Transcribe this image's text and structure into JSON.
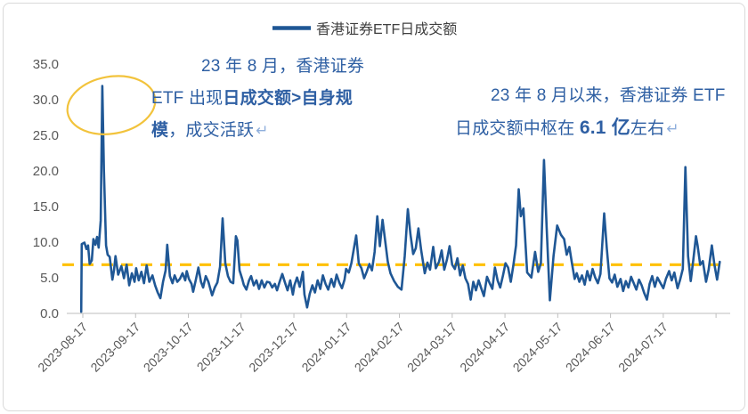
{
  "chart_data": {
    "type": "line",
    "title": "",
    "legend_position": "top-center",
    "grid": false,
    "x_axis": {
      "tick_labels": [
        "2023-08-17",
        "2023-09-17",
        "2023-10-17",
        "2023-11-17",
        "2023-12-17",
        "2024-01-17",
        "2024-02-17",
        "2024-03-17",
        "2024-04-17",
        "2024-05-17",
        "2024-06-17",
        "2024-07-17"
      ],
      "note": "daily data; series point x = months after 2023-08-17 (estimated from axis)"
    },
    "y_axis": {
      "tick_labels": [
        "0.0",
        "5.0",
        "10.0",
        "15.0",
        "20.0",
        "25.0",
        "30.0",
        "35.0"
      ],
      "min": 0,
      "max": 35,
      "tick_step": 5
    },
    "reference_line": {
      "value": 6.8,
      "style": "dashed",
      "color": "#FFC000"
    },
    "series": [
      {
        "name": "香港证券ETF日成交额",
        "color": "#1F5795",
        "unit": "亿元",
        "points": [
          [
            -0.03,
            0.2
          ],
          [
            -0.02,
            9.7
          ],
          [
            0.03,
            9.9
          ],
          [
            0.07,
            9.0
          ],
          [
            0.1,
            9.5
          ],
          [
            0.13,
            6.9
          ],
          [
            0.17,
            7.4
          ],
          [
            0.2,
            10.4
          ],
          [
            0.24,
            9.6
          ],
          [
            0.27,
            10.7
          ],
          [
            0.3,
            9.2
          ],
          [
            0.34,
            13.0
          ],
          [
            0.37,
            31.9
          ],
          [
            0.4,
            20.0
          ],
          [
            0.44,
            9.5
          ],
          [
            0.47,
            8.2
          ],
          [
            0.51,
            7.9
          ],
          [
            0.56,
            4.7
          ],
          [
            0.59,
            6.0
          ],
          [
            0.62,
            8.0
          ],
          [
            0.67,
            5.4
          ],
          [
            0.73,
            6.6
          ],
          [
            0.78,
            4.9
          ],
          [
            0.83,
            6.8
          ],
          [
            0.88,
            3.9
          ],
          [
            0.93,
            5.6
          ],
          [
            0.98,
            4.4
          ],
          [
            1.01,
            6.3
          ],
          [
            1.06,
            4.6
          ],
          [
            1.11,
            5.8
          ],
          [
            1.16,
            4.2
          ],
          [
            1.21,
            6.7
          ],
          [
            1.26,
            4.4
          ],
          [
            1.32,
            5.3
          ],
          [
            1.37,
            3.9
          ],
          [
            1.42,
            2.9
          ],
          [
            1.47,
            2.1
          ],
          [
            1.52,
            4.4
          ],
          [
            1.57,
            6.0
          ],
          [
            1.6,
            9.6
          ],
          [
            1.65,
            5.2
          ],
          [
            1.7,
            4.2
          ],
          [
            1.74,
            5.3
          ],
          [
            1.79,
            4.4
          ],
          [
            1.84,
            4.8
          ],
          [
            1.89,
            5.6
          ],
          [
            1.94,
            4.6
          ],
          [
            1.97,
            5.9
          ],
          [
            2.01,
            4.8
          ],
          [
            2.06,
            4.1
          ],
          [
            2.09,
            3.0
          ],
          [
            2.14,
            4.6
          ],
          [
            2.19,
            6.4
          ],
          [
            2.24,
            4.4
          ],
          [
            2.28,
            3.6
          ],
          [
            2.33,
            5.2
          ],
          [
            2.38,
            4.4
          ],
          [
            2.45,
            2.5
          ],
          [
            2.5,
            3.6
          ],
          [
            2.55,
            4.3
          ],
          [
            2.6,
            6.5
          ],
          [
            2.65,
            13.3
          ],
          [
            2.7,
            7.0
          ],
          [
            2.75,
            5.2
          ],
          [
            2.8,
            4.4
          ],
          [
            2.85,
            4.2
          ],
          [
            2.9,
            10.8
          ],
          [
            2.93,
            10.2
          ],
          [
            2.97,
            6.0
          ],
          [
            3.02,
            4.8
          ],
          [
            3.05,
            4.0
          ],
          [
            3.1,
            3.3
          ],
          [
            3.15,
            4.6
          ],
          [
            3.19,
            5.2
          ],
          [
            3.24,
            3.9
          ],
          [
            3.29,
            4.6
          ],
          [
            3.34,
            3.4
          ],
          [
            3.39,
            4.6
          ],
          [
            3.44,
            3.6
          ],
          [
            3.49,
            4.4
          ],
          [
            3.54,
            4.3
          ],
          [
            3.59,
            3.6
          ],
          [
            3.64,
            4.1
          ],
          [
            3.68,
            3.2
          ],
          [
            3.73,
            4.4
          ],
          [
            3.78,
            5.5
          ],
          [
            3.83,
            4.3
          ],
          [
            3.88,
            3.2
          ],
          [
            3.93,
            4.6
          ],
          [
            3.98,
            2.6
          ],
          [
            4.01,
            3.9
          ],
          [
            4.06,
            5.0
          ],
          [
            4.11,
            3.7
          ],
          [
            4.17,
            5.8
          ],
          [
            4.2,
            2.6
          ],
          [
            4.25,
            0.8
          ],
          [
            4.3,
            2.7
          ],
          [
            4.35,
            3.9
          ],
          [
            4.4,
            2.9
          ],
          [
            4.45,
            4.6
          ],
          [
            4.5,
            3.4
          ],
          [
            4.55,
            5.3
          ],
          [
            4.6,
            4.1
          ],
          [
            4.65,
            3.3
          ],
          [
            4.71,
            4.8
          ],
          [
            4.76,
            3.7
          ],
          [
            4.81,
            5.4
          ],
          [
            4.86,
            4.3
          ],
          [
            4.91,
            3.5
          ],
          [
            4.96,
            4.7
          ],
          [
            4.99,
            6.2
          ],
          [
            5.04,
            5.7
          ],
          [
            5.09,
            7.0
          ],
          [
            5.14,
            9.2
          ],
          [
            5.18,
            10.9
          ],
          [
            5.23,
            7.0
          ],
          [
            5.28,
            6.3
          ],
          [
            5.33,
            4.9
          ],
          [
            5.38,
            5.8
          ],
          [
            5.43,
            6.9
          ],
          [
            5.48,
            6.0
          ],
          [
            5.53,
            8.6
          ],
          [
            5.58,
            13.6
          ],
          [
            5.63,
            9.4
          ],
          [
            5.68,
            13.1
          ],
          [
            5.73,
            10.1
          ],
          [
            5.78,
            7.2
          ],
          [
            5.83,
            5.6
          ],
          [
            5.9,
            4.5
          ],
          [
            5.97,
            3.7
          ],
          [
            6.04,
            3.3
          ],
          [
            6.1,
            8.0
          ],
          [
            6.16,
            14.6
          ],
          [
            6.21,
            11.0
          ],
          [
            6.26,
            8.3
          ],
          [
            6.31,
            9.1
          ],
          [
            6.36,
            11.9
          ],
          [
            6.41,
            8.9
          ],
          [
            6.48,
            5.6
          ],
          [
            6.53,
            7.1
          ],
          [
            6.58,
            6.1
          ],
          [
            6.64,
            9.3
          ],
          [
            6.69,
            6.3
          ],
          [
            6.75,
            7.2
          ],
          [
            6.8,
            8.8
          ],
          [
            6.85,
            6.1
          ],
          [
            6.9,
            7.5
          ],
          [
            6.95,
            9.4
          ],
          [
            7.0,
            6.8
          ],
          [
            7.05,
            6.2
          ],
          [
            7.1,
            7.7
          ],
          [
            7.15,
            5.3
          ],
          [
            7.2,
            6.7
          ],
          [
            7.25,
            4.9
          ],
          [
            7.3,
            4.1
          ],
          [
            7.35,
            1.9
          ],
          [
            7.4,
            4.4
          ],
          [
            7.45,
            3.2
          ],
          [
            7.5,
            4.6
          ],
          [
            7.55,
            3.5
          ],
          [
            7.6,
            2.4
          ],
          [
            7.66,
            5.1
          ],
          [
            7.71,
            4.2
          ],
          [
            7.76,
            3.4
          ],
          [
            7.81,
            6.4
          ],
          [
            7.86,
            4.6
          ],
          [
            7.91,
            3.6
          ],
          [
            7.96,
            5.2
          ],
          [
            8.01,
            7.0
          ],
          [
            8.06,
            6.4
          ],
          [
            8.11,
            4.4
          ],
          [
            8.16,
            6.8
          ],
          [
            8.21,
            9.5
          ],
          [
            8.26,
            17.4
          ],
          [
            8.3,
            13.6
          ],
          [
            8.35,
            14.7
          ],
          [
            8.42,
            5.7
          ],
          [
            8.5,
            5.0
          ],
          [
            8.57,
            8.6
          ],
          [
            8.63,
            5.8
          ],
          [
            8.68,
            7.0
          ],
          [
            8.74,
            21.5
          ],
          [
            8.79,
            12.0
          ],
          [
            8.85,
            1.8
          ],
          [
            8.92,
            8.0
          ],
          [
            8.99,
            12.3
          ],
          [
            9.06,
            11.0
          ],
          [
            9.12,
            10.4
          ],
          [
            9.17,
            8.2
          ],
          [
            9.22,
            9.3
          ],
          [
            9.27,
            7.0
          ],
          [
            9.32,
            4.8
          ],
          [
            9.36,
            5.6
          ],
          [
            9.41,
            4.4
          ],
          [
            9.46,
            5.3
          ],
          [
            9.51,
            4.0
          ],
          [
            9.56,
            5.9
          ],
          [
            9.61,
            4.6
          ],
          [
            9.66,
            6.2
          ],
          [
            9.71,
            5.0
          ],
          [
            9.76,
            4.2
          ],
          [
            9.81,
            5.5
          ],
          [
            9.88,
            14.0
          ],
          [
            9.93,
            9.0
          ],
          [
            9.98,
            4.9
          ],
          [
            10.03,
            4.3
          ],
          [
            10.08,
            5.4
          ],
          [
            10.13,
            3.7
          ],
          [
            10.19,
            4.8
          ],
          [
            10.24,
            3.1
          ],
          [
            10.29,
            4.5
          ],
          [
            10.34,
            3.6
          ],
          [
            10.39,
            5.1
          ],
          [
            10.44,
            4.2
          ],
          [
            10.49,
            3.3
          ],
          [
            10.54,
            4.7
          ],
          [
            10.59,
            3.9
          ],
          [
            10.64,
            2.8
          ],
          [
            10.69,
            1.9
          ],
          [
            10.74,
            4.1
          ],
          [
            10.79,
            5.2
          ],
          [
            10.84,
            3.7
          ],
          [
            10.89,
            5.0
          ],
          [
            10.94,
            4.3
          ],
          [
            11.0,
            3.5
          ],
          [
            11.05,
            4.8
          ],
          [
            11.11,
            5.9
          ],
          [
            11.16,
            4.6
          ],
          [
            11.21,
            5.7
          ],
          [
            11.27,
            3.5
          ],
          [
            11.32,
            4.7
          ],
          [
            11.37,
            6.2
          ],
          [
            11.42,
            20.5
          ],
          [
            11.47,
            8.0
          ],
          [
            11.52,
            4.5
          ],
          [
            11.57,
            7.5
          ],
          [
            11.62,
            10.8
          ],
          [
            11.65,
            9.5
          ],
          [
            11.7,
            6.8
          ],
          [
            11.75,
            7.3
          ],
          [
            11.81,
            4.4
          ],
          [
            11.86,
            6.1
          ],
          [
            11.92,
            9.5
          ],
          [
            11.97,
            6.8
          ],
          [
            12.02,
            4.7
          ],
          [
            12.07,
            7.2
          ]
        ]
      }
    ]
  },
  "annotations": {
    "ellipse": {
      "x_month": 0.54,
      "value": 29.2,
      "rx_months": 0.84,
      "ry_value": 4.0,
      "color": "#F2C33C"
    },
    "left_note": {
      "line1": "23 年 8 月，香港证券",
      "line2_normal": "ETF 出现",
      "line2_bold": "日成交额>自身规",
      "line3_bold": "模",
      "line3_normal": "，成交活跃",
      "ret": "↵"
    },
    "right_note": {
      "line1": "23 年 8 月以来，香港证券 ETF",
      "line2_normal": "日成交额中枢在 ",
      "line2_bold": "6.1 亿",
      "line2_suffix": "左右",
      "ret": "↵"
    }
  },
  "colors": {
    "series_line": "#1F5795",
    "reference_dash": "#FFC000",
    "ellipse": "#F2C33C",
    "annotation_text": "#2E5FA3",
    "axis_label": "#595959",
    "legend_text": "#3F3F3F",
    "border": "#D9D9D9",
    "background": "#FFFFFF"
  }
}
